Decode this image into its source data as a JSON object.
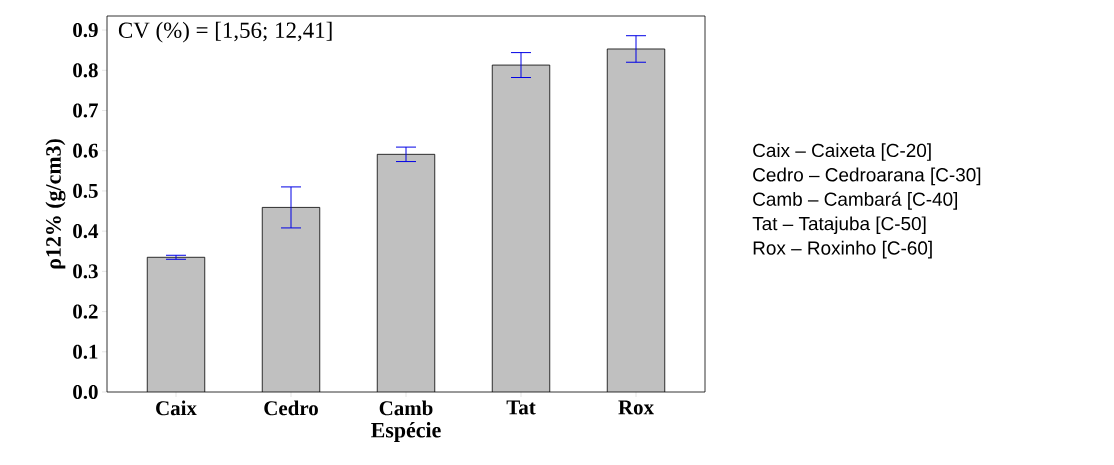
{
  "chart_data": {
    "type": "bar",
    "xlabel": "Espécie",
    "ylabel": "ρ12% (g/cm3)",
    "categories": [
      "Caix",
      "Cedro",
      "Camb",
      "Tat",
      "Rox"
    ],
    "values": [
      0.335,
      0.459,
      0.591,
      0.813,
      0.853
    ],
    "errors": [
      0.005,
      0.051,
      0.018,
      0.031,
      0.033
    ],
    "color": "#c0c0c0",
    "ylim": [
      0,
      0.935
    ],
    "yticks": [
      {
        "value": 0,
        "label": "0.0"
      },
      0.1,
      0.2,
      0.3,
      0.4,
      0.5,
      0.6,
      0.7,
      0.8,
      0.9
    ],
    "grid": false,
    "annotations": [
      "CV (%) = [1,56; 12,41]",
      "Caix – Caixeta [C-20]",
      "Cedro – Cedroarana [C-30]",
      "Camb – Cambará [C-40]",
      "Tat – Tatajuba [C-50]",
      "Rox – Roxinho [C-60]"
    ]
  }
}
